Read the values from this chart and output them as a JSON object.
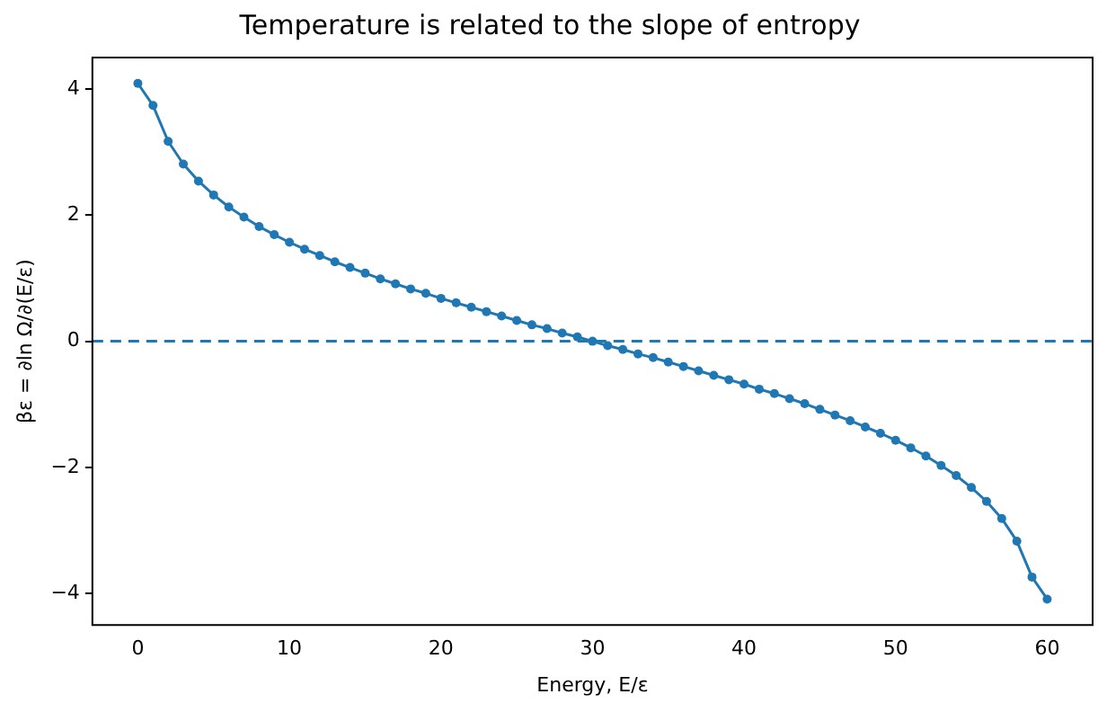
{
  "chart_data": {
    "type": "line",
    "title": "Temperature is related to the slope of entropy",
    "xlabel": "Energy, E/ε",
    "ylabel": "βε = ∂ln Ω/∂(E/ε)",
    "x": [
      0,
      1,
      2,
      3,
      4,
      5,
      6,
      7,
      8,
      9,
      10,
      11,
      12,
      13,
      14,
      15,
      16,
      17,
      18,
      19,
      20,
      21,
      22,
      23,
      24,
      25,
      26,
      27,
      28,
      29,
      30,
      31,
      32,
      33,
      34,
      35,
      36,
      37,
      38,
      39,
      40,
      41,
      42,
      43,
      44,
      45,
      46,
      47,
      48,
      49,
      50,
      51,
      52,
      53,
      54,
      55,
      56,
      57,
      58,
      59,
      60
    ],
    "series": [
      {
        "color": "#1f77b4",
        "values": [
          4.09,
          3.74,
          3.17,
          2.81,
          2.54,
          2.32,
          2.13,
          1.97,
          1.82,
          1.69,
          1.57,
          1.46,
          1.36,
          1.26,
          1.17,
          1.08,
          0.99,
          0.91,
          0.83,
          0.76,
          0.68,
          0.61,
          0.54,
          0.47,
          0.4,
          0.33,
          0.26,
          0.2,
          0.13,
          0.07,
          0,
          -0.07,
          -0.13,
          -0.2,
          -0.26,
          -0.33,
          -0.4,
          -0.47,
          -0.54,
          -0.61,
          -0.68,
          -0.76,
          -0.83,
          -0.91,
          -0.99,
          -1.08,
          -1.17,
          -1.26,
          -1.36,
          -1.46,
          -1.57,
          -1.69,
          -1.82,
          -1.97,
          -2.13,
          -2.32,
          -2.54,
          -2.81,
          -3.17,
          -3.74,
          -4.09
        ]
      }
    ],
    "xlim": [
      -3,
      63
    ],
    "xticks": [
      0,
      10,
      20,
      30,
      40,
      50,
      60
    ],
    "ylim": [
      -4.5,
      4.5
    ],
    "yticks": [
      -4,
      -2,
      0,
      2,
      4
    ],
    "ref_lines": [
      {
        "axis": "y",
        "value": 0,
        "color": "#1f77b4",
        "line_style": "dashed"
      }
    ],
    "grid": false,
    "legend": false,
    "marker": "circle",
    "line_style": "solid"
  }
}
